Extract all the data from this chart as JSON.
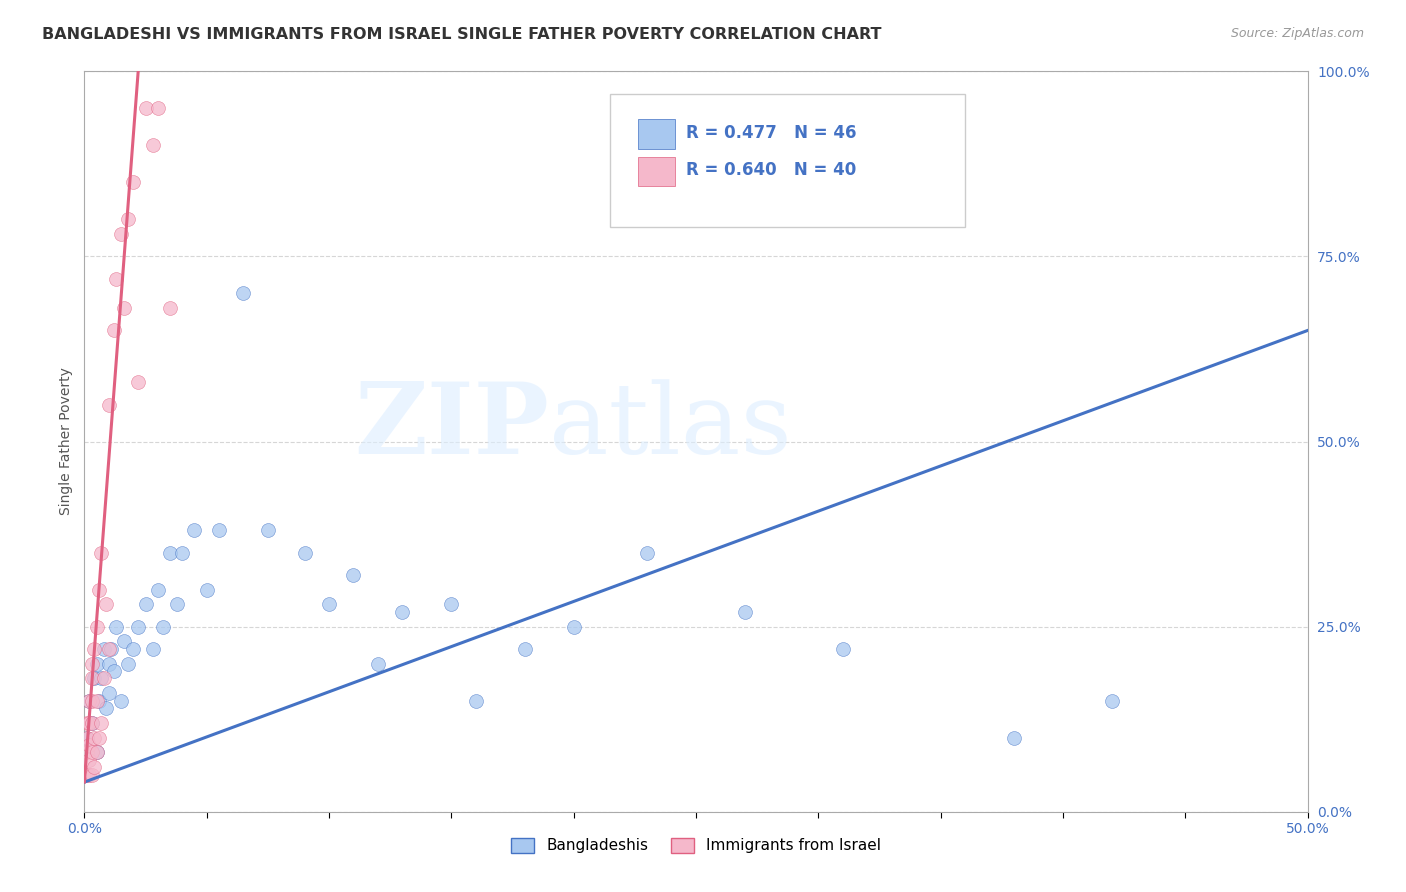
{
  "title": "BANGLADESHI VS IMMIGRANTS FROM ISRAEL SINGLE FATHER POVERTY CORRELATION CHART",
  "source": "Source: ZipAtlas.com",
  "ylabel": "Single Father Poverty",
  "legend_label1": "Bangladeshis",
  "legend_label2": "Immigrants from Israel",
  "r1": 0.477,
  "n1": 46,
  "r2": 0.64,
  "n2": 40,
  "color_blue": "#a8c8f0",
  "color_pink": "#f5b8cb",
  "color_blue_line": "#4472c4",
  "color_pink_line": "#e06080",
  "xlim": [
    0.0,
    0.5
  ],
  "ylim": [
    0.0,
    1.0
  ],
  "blue_scatter_x": [
    0.001,
    0.002,
    0.003,
    0.004,
    0.005,
    0.005,
    0.006,
    0.007,
    0.008,
    0.009,
    0.01,
    0.01,
    0.011,
    0.012,
    0.013,
    0.015,
    0.016,
    0.018,
    0.02,
    0.022,
    0.025,
    0.028,
    0.03,
    0.032,
    0.035,
    0.038,
    0.04,
    0.045,
    0.05,
    0.055,
    0.065,
    0.075,
    0.09,
    0.1,
    0.11,
    0.12,
    0.13,
    0.15,
    0.16,
    0.18,
    0.2,
    0.23,
    0.27,
    0.31,
    0.38,
    0.42
  ],
  "blue_scatter_y": [
    0.1,
    0.15,
    0.12,
    0.18,
    0.08,
    0.2,
    0.15,
    0.18,
    0.22,
    0.14,
    0.2,
    0.16,
    0.22,
    0.19,
    0.25,
    0.15,
    0.23,
    0.2,
    0.22,
    0.25,
    0.28,
    0.22,
    0.3,
    0.25,
    0.35,
    0.28,
    0.35,
    0.38,
    0.3,
    0.38,
    0.7,
    0.38,
    0.35,
    0.28,
    0.32,
    0.2,
    0.27,
    0.28,
    0.15,
    0.22,
    0.25,
    0.35,
    0.27,
    0.22,
    0.1,
    0.15
  ],
  "pink_scatter_x": [
    0.001,
    0.001,
    0.001,
    0.001,
    0.002,
    0.002,
    0.002,
    0.002,
    0.002,
    0.003,
    0.003,
    0.003,
    0.003,
    0.003,
    0.003,
    0.004,
    0.004,
    0.004,
    0.005,
    0.005,
    0.005,
    0.006,
    0.006,
    0.007,
    0.007,
    0.008,
    0.009,
    0.01,
    0.01,
    0.012,
    0.013,
    0.015,
    0.016,
    0.018,
    0.02,
    0.022,
    0.025,
    0.028,
    0.03,
    0.035
  ],
  "pink_scatter_y": [
    0.05,
    0.08,
    0.1,
    0.12,
    0.05,
    0.07,
    0.09,
    0.12,
    0.15,
    0.05,
    0.08,
    0.12,
    0.15,
    0.18,
    0.2,
    0.06,
    0.1,
    0.22,
    0.08,
    0.15,
    0.25,
    0.1,
    0.3,
    0.12,
    0.35,
    0.18,
    0.28,
    0.22,
    0.55,
    0.65,
    0.72,
    0.78,
    0.68,
    0.8,
    0.85,
    0.58,
    0.95,
    0.9,
    0.95,
    0.68
  ],
  "blue_line_x0": 0.0,
  "blue_line_y0": 0.04,
  "blue_line_x1": 0.5,
  "blue_line_y1": 0.65,
  "pink_line_x0": 0.0,
  "pink_line_y0": 0.04,
  "pink_line_x1": 0.022,
  "pink_line_y1": 1.0
}
